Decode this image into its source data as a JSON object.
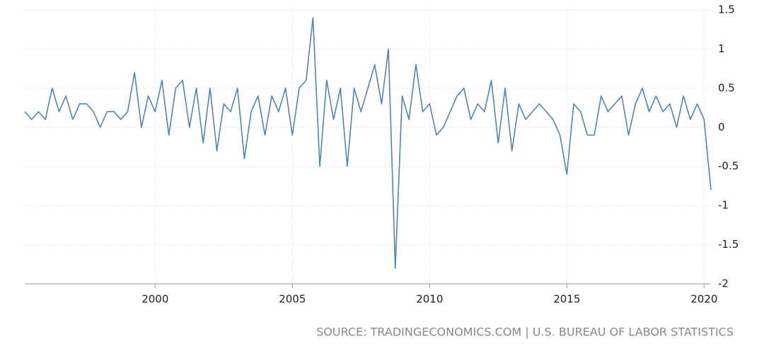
{
  "chart_data": {
    "type": "line",
    "source": "SOURCE: TRADINGECONOMICS.COM | U.S. BUREAU OF LABOR STATISTICS",
    "x": [
      1995.25,
      1995.5,
      1995.75,
      1996,
      1996.25,
      1996.5,
      1996.75,
      1997,
      1997.25,
      1997.5,
      1997.75,
      1998,
      1998.25,
      1998.5,
      1998.75,
      1999,
      1999.25,
      1999.5,
      1999.75,
      2000,
      2000.25,
      2000.5,
      2000.75,
      2001,
      2001.25,
      2001.5,
      2001.75,
      2002,
      2002.25,
      2002.5,
      2002.75,
      2003,
      2003.25,
      2003.5,
      2003.75,
      2004,
      2004.25,
      2004.5,
      2004.75,
      2005,
      2005.25,
      2005.5,
      2005.75,
      2006,
      2006.25,
      2006.5,
      2006.75,
      2007,
      2007.25,
      2007.5,
      2007.75,
      2008,
      2008.25,
      2008.5,
      2008.75,
      2009,
      2009.25,
      2009.5,
      2009.75,
      2010,
      2010.25,
      2010.5,
      2010.75,
      2011,
      2011.25,
      2011.5,
      2011.75,
      2012,
      2012.25,
      2012.5,
      2012.75,
      2013,
      2013.25,
      2013.5,
      2013.75,
      2014,
      2014.25,
      2014.5,
      2014.75,
      2015,
      2015.25,
      2015.5,
      2015.75,
      2016,
      2016.25,
      2016.5,
      2016.75,
      2017,
      2017.25,
      2017.5,
      2017.75,
      2018,
      2018.25,
      2018.5,
      2018.75,
      2019,
      2019.25,
      2019.5,
      2019.75,
      2020,
      2020.25
    ],
    "series": [
      {
        "color": "#4f86b0",
        "values": [
          0.2,
          0.1,
          0.2,
          0.1,
          0.5,
          0.2,
          0.4,
          0.1,
          0.3,
          0.3,
          0.2,
          0.0,
          0.2,
          0.2,
          0.1,
          0.2,
          0.7,
          0.0,
          0.4,
          0.2,
          0.6,
          -0.1,
          0.5,
          0.6,
          0.0,
          0.5,
          -0.2,
          0.5,
          -0.3,
          0.3,
          0.2,
          0.5,
          -0.4,
          0.2,
          0.4,
          -0.1,
          0.4,
          0.2,
          0.5,
          -0.1,
          0.5,
          0.6,
          1.4,
          -0.5,
          0.6,
          0.1,
          0.5,
          -0.5,
          0.5,
          0.2,
          0.5,
          0.8,
          0.3,
          1.0,
          -1.8,
          0.4,
          0.1,
          0.8,
          0.2,
          0.3,
          -0.1,
          0.0,
          0.2,
          0.4,
          0.5,
          0.1,
          0.3,
          0.2,
          0.6,
          -0.2,
          0.5,
          -0.3,
          0.3,
          0.1,
          0.2,
          0.3,
          0.2,
          0.1,
          -0.1,
          -0.6,
          0.3,
          0.2,
          -0.1,
          -0.1,
          0.4,
          0.2,
          0.3,
          0.4,
          -0.1,
          0.3,
          0.5,
          0.2,
          0.4,
          0.2,
          0.3,
          0.0,
          0.4,
          0.1,
          0.3,
          0.1,
          -0.8
        ]
      }
    ],
    "xlim": [
      1995.25,
      2020.25
    ],
    "xticks": [
      2000,
      2005,
      2010,
      2015,
      2020
    ],
    "ylim": [
      -2,
      1.5
    ],
    "yticks": [
      1.5,
      1,
      0.5,
      0,
      -0.5,
      -1,
      -1.5,
      -2
    ],
    "grid": true
  }
}
